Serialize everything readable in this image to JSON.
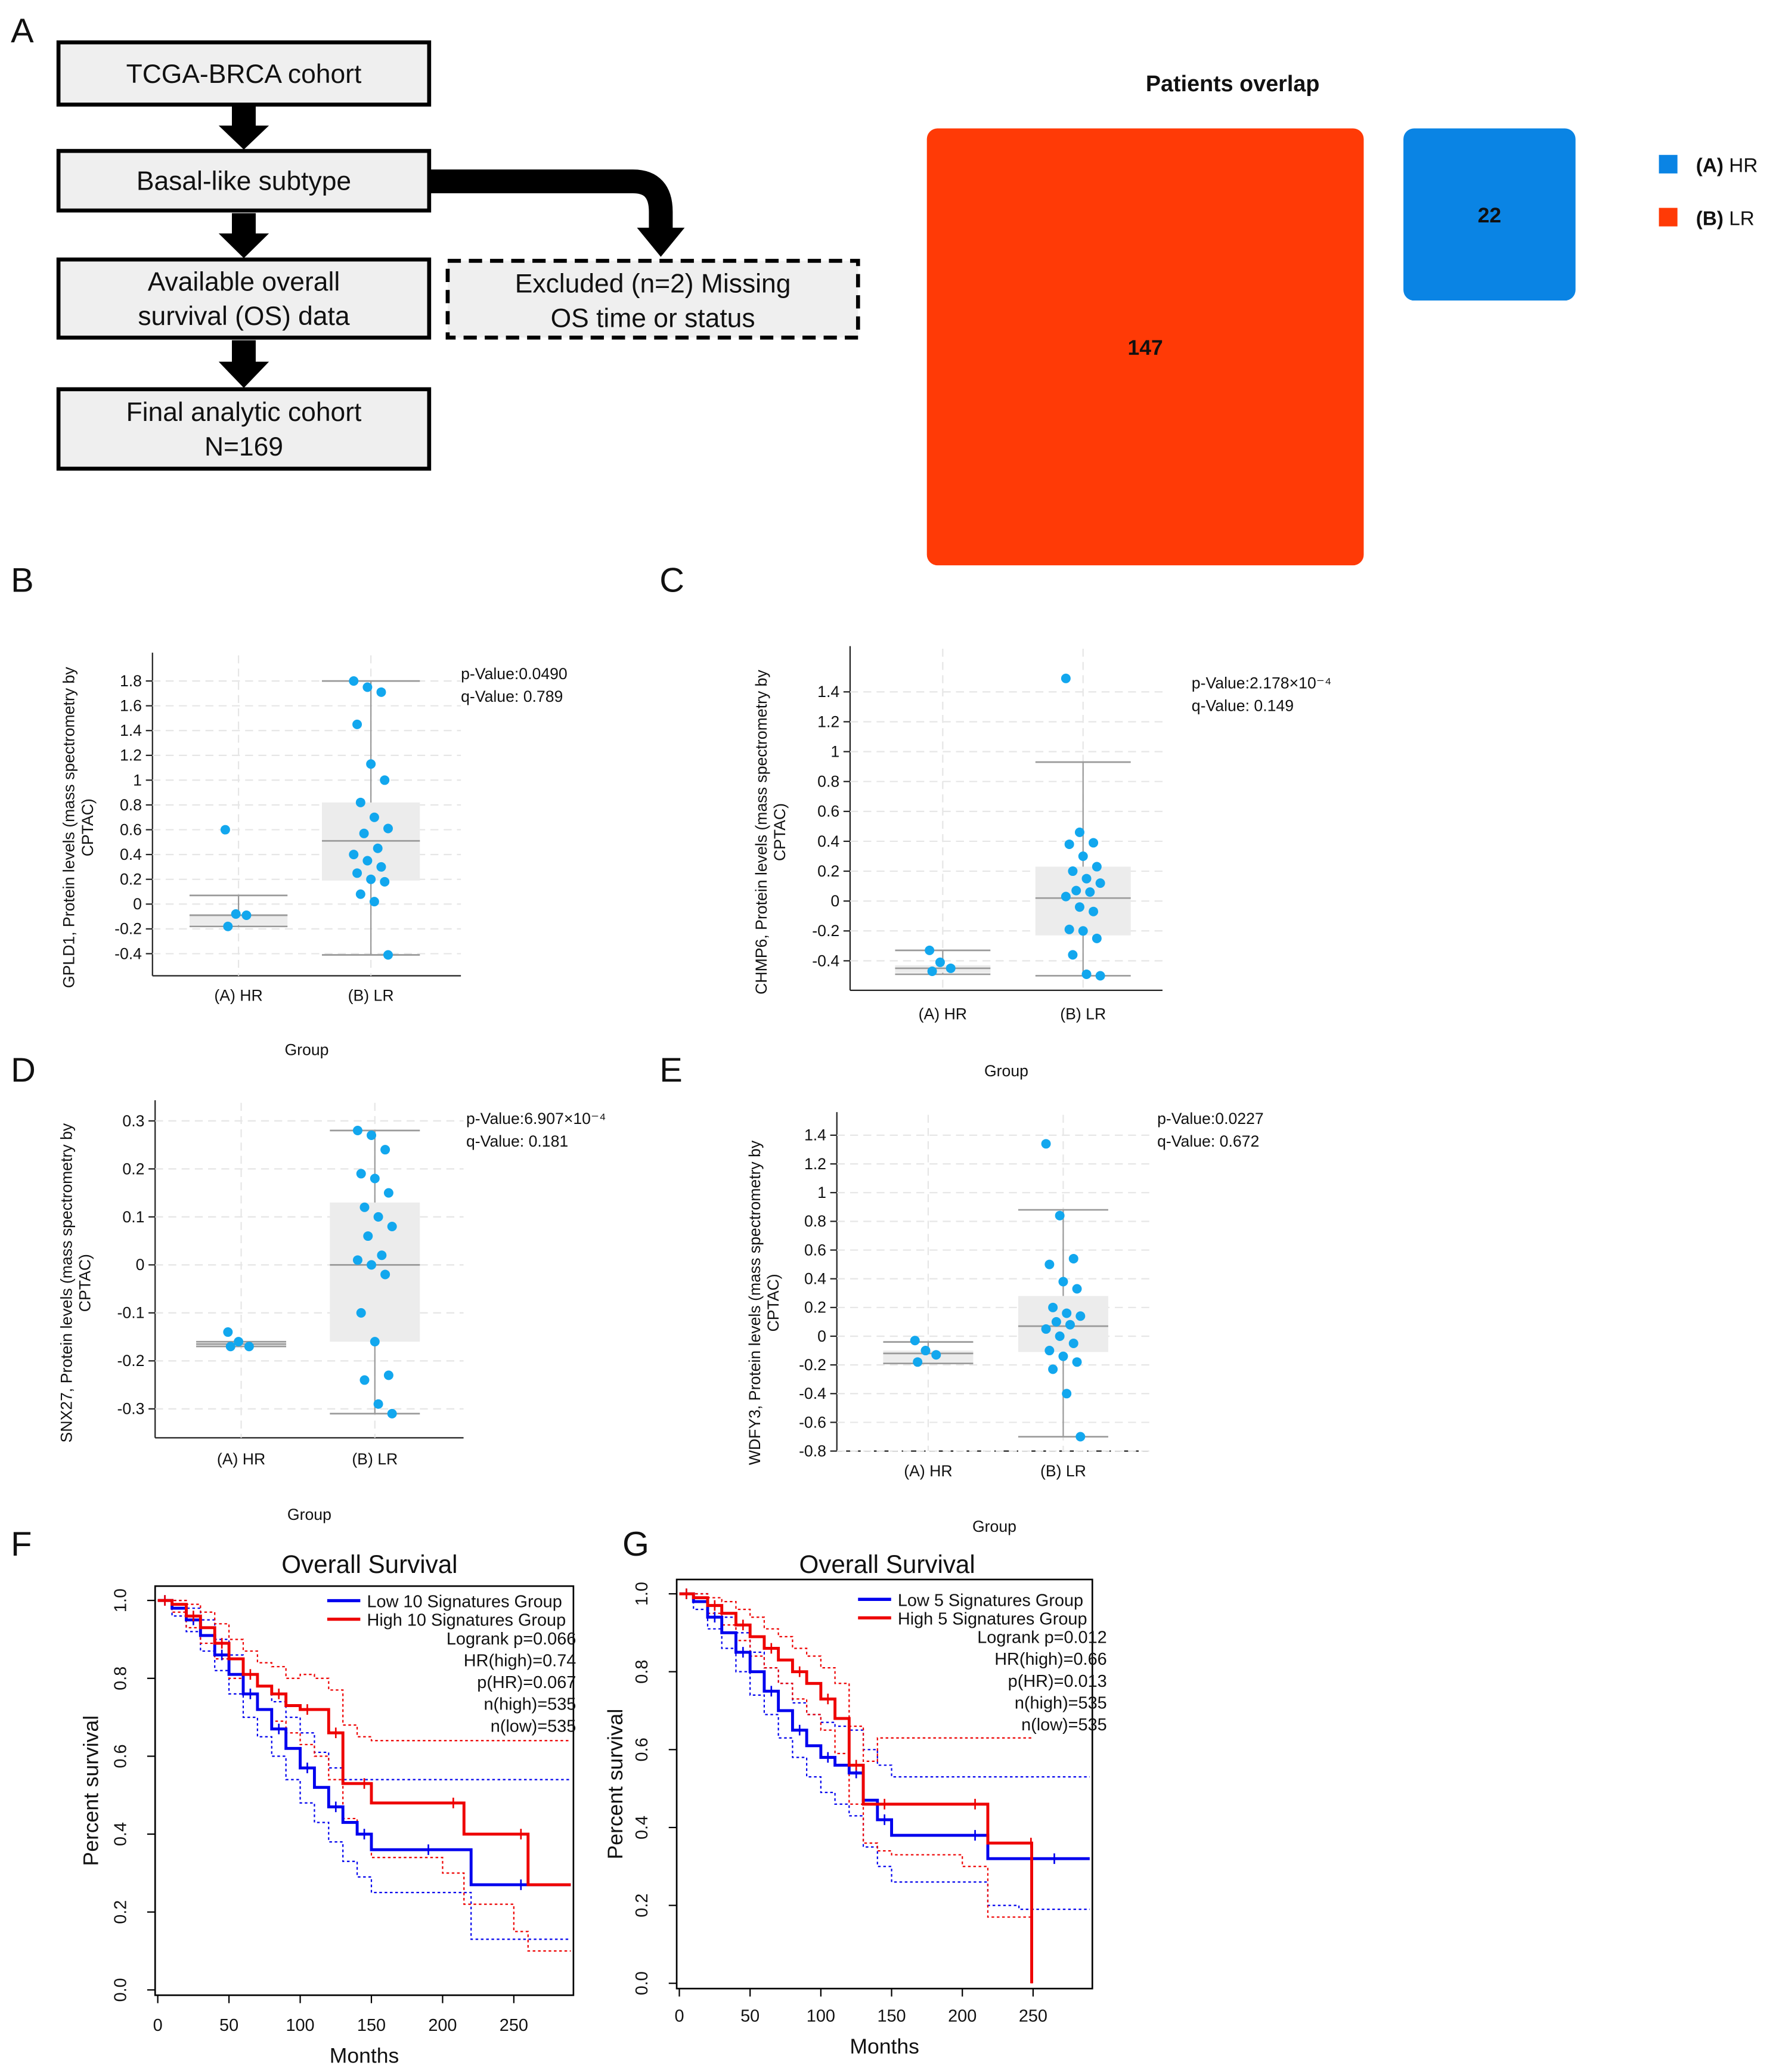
{
  "figure": {
    "panel_letters": [
      "A",
      "B",
      "C",
      "D",
      "E",
      "F",
      "G"
    ]
  },
  "flowchart": {
    "boxes": [
      {
        "lines": [
          "TCGA-BRCA cohort"
        ]
      },
      {
        "lines": [
          "Basal-like subtype"
        ]
      },
      {
        "lines": [
          "Available overall",
          "survival (OS) data"
        ]
      },
      {
        "lines": [
          "Final analytic cohort",
          "N=169"
        ]
      }
    ],
    "excluded": {
      "lines": [
        "Excluded (n=2) Missing",
        "OS time or status"
      ]
    }
  },
  "chart_data": [
    {
      "id": "overlap",
      "type": "treemap",
      "title": "Patients overlap",
      "groups": [
        {
          "name_prefix": "(A)",
          "name_suffix": " HR",
          "value": 22,
          "color": "#0a84e4"
        },
        {
          "name_prefix": "(B)",
          "name_suffix": " LR",
          "value": 147,
          "color": "#ff3a06"
        }
      ]
    },
    {
      "id": "B",
      "type": "box",
      "gene": "GPLD1",
      "ylabel": [
        "GPLD1, Protein levels (mass spectrometry by",
        "CPTAC)"
      ],
      "xlabel": "Group",
      "categories": [
        "(A) HR",
        "(B) LR"
      ],
      "yticks": [
        1.8,
        1.6,
        1.4,
        1.2,
        1,
        0.8,
        0.6,
        0.4,
        0.2,
        0,
        -0.2,
        -0.4
      ],
      "ylim": [
        -0.45,
        1.9
      ],
      "stats": [
        "p-Value:0.0490",
        "q-Value: 0.789"
      ],
      "boxes": [
        {
          "min": -0.18,
          "q1": -0.17,
          "median": -0.09,
          "q3": -0.08,
          "max": 0.07
        },
        {
          "min": -0.41,
          "q1": 0.19,
          "median": 0.51,
          "q3": 0.82,
          "max": 1.8
        }
      ],
      "points": [
        [
          0.6,
          -0.08,
          -0.09,
          -0.18
        ],
        [
          1.8,
          1.75,
          1.71,
          1.45,
          1.13,
          1.0,
          0.82,
          0.7,
          0.61,
          0.57,
          0.45,
          0.4,
          0.35,
          0.3,
          0.25,
          0.2,
          0.18,
          0.08,
          0.02,
          -0.41
        ]
      ]
    },
    {
      "id": "C",
      "type": "box",
      "gene": "CHMP6",
      "ylabel": [
        "CHMP6, Protein levels (mass spectrometry by",
        "CPTAC)"
      ],
      "xlabel": "Group",
      "categories": [
        "(A) HR",
        "(B) LR"
      ],
      "yticks": [
        1.4,
        1.2,
        1,
        0.8,
        0.6,
        0.4,
        0.2,
        0,
        -0.2,
        -0.4
      ],
      "ylim": [
        -0.5,
        1.6
      ],
      "stats": [
        "p-Value:2.178×10⁻⁴",
        "q-Value: 0.149"
      ],
      "boxes": [
        {
          "min": -0.49,
          "q1": -0.48,
          "median": -0.45,
          "q3": -0.43,
          "max": -0.33
        },
        {
          "min": -0.5,
          "q1": -0.23,
          "median": 0.02,
          "q3": 0.23,
          "max": 0.93
        }
      ],
      "points": [
        [
          -0.33,
          -0.41,
          -0.45,
          -0.47
        ],
        [
          1.49,
          0.46,
          0.39,
          0.38,
          0.3,
          0.23,
          0.2,
          0.15,
          0.12,
          0.07,
          0.06,
          0.03,
          -0.04,
          -0.07,
          -0.19,
          -0.2,
          -0.25,
          -0.36,
          -0.49,
          -0.5
        ]
      ]
    },
    {
      "id": "D",
      "type": "box",
      "gene": "SNX27",
      "ylabel": [
        "SNX27, Protein levels (mass spectrometry by",
        "CPTAC)"
      ],
      "xlabel": "Group",
      "categories": [
        "(A) HR",
        "(B) LR"
      ],
      "yticks": [
        0.3,
        0.2,
        0.1,
        0,
        -0.1,
        -0.2,
        -0.3
      ],
      "ylim": [
        -0.33,
        0.31
      ],
      "stats": [
        "p-Value:6.907×10⁻⁴",
        "q-Value: 0.181"
      ],
      "boxes": [
        {
          "min": -0.17,
          "q1": -0.17,
          "median": -0.165,
          "q3": -0.16,
          "max": -0.16
        },
        {
          "min": -0.31,
          "q1": -0.16,
          "median": 0.0,
          "q3": 0.13,
          "max": 0.28
        }
      ],
      "points": [
        [
          -0.14,
          -0.16,
          -0.17,
          -0.17
        ],
        [
          0.28,
          0.27,
          0.24,
          0.19,
          0.18,
          0.15,
          0.12,
          0.1,
          0.08,
          0.06,
          0.02,
          0.01,
          0.0,
          -0.02,
          -0.1,
          -0.16,
          -0.23,
          -0.24,
          -0.29,
          -0.31
        ]
      ]
    },
    {
      "id": "E",
      "type": "box",
      "gene": "WDFY3",
      "ylabel": [
        "WDFY3, Protein levels (mass spectrometry by",
        "CPTAC)"
      ],
      "xlabel": "Group",
      "categories": [
        "(A) HR",
        "(B) LR"
      ],
      "yticks": [
        1.4,
        1.2,
        1,
        0.8,
        0.6,
        0.4,
        0.2,
        0,
        -0.2,
        -0.4,
        -0.6,
        -0.8
      ],
      "ylim": [
        -0.8,
        1.45
      ],
      "stats": [
        "p-Value:0.0227",
        "q-Value: 0.672"
      ],
      "boxes": [
        {
          "min": -0.19,
          "q1": -0.19,
          "median": -0.12,
          "q3": -0.1,
          "max": -0.04
        },
        {
          "min": -0.7,
          "q1": -0.11,
          "median": 0.07,
          "q3": 0.28,
          "max": 0.88
        }
      ],
      "points": [
        [
          -0.03,
          -0.1,
          -0.13,
          -0.18
        ],
        [
          1.34,
          0.84,
          0.54,
          0.5,
          0.38,
          0.33,
          0.2,
          0.16,
          0.14,
          0.1,
          0.08,
          0.05,
          0.0,
          -0.05,
          -0.1,
          -0.14,
          -0.18,
          -0.23,
          -0.4,
          -0.7
        ]
      ]
    },
    {
      "id": "F",
      "type": "line",
      "title": "Overall Survival",
      "xlabel": "Months",
      "ylabel": "Percent survival",
      "xticks": [
        0,
        50,
        100,
        150,
        200,
        250
      ],
      "yticks": [
        0.0,
        0.2,
        0.4,
        0.6,
        0.8,
        1.0
      ],
      "xlim": [
        0,
        290
      ],
      "ylim": [
        0,
        1.03
      ],
      "legend": [
        "Low 10 Signatures Group",
        "High 10 Signatures Group"
      ],
      "stats": [
        "Logrank p=0.066",
        "HR(high)=0.74",
        "p(HR)=0.067",
        "n(high)=535",
        "n(low)=535"
      ],
      "series": [
        {
          "name": "Low 10 Signatures Group",
          "color": "#0000ee",
          "x": [
            0,
            10,
            20,
            30,
            40,
            50,
            60,
            70,
            80,
            90,
            100,
            110,
            120,
            130,
            140,
            150,
            180,
            200,
            220,
            290
          ],
          "y": [
            1.0,
            0.98,
            0.95,
            0.91,
            0.86,
            0.81,
            0.76,
            0.72,
            0.67,
            0.62,
            0.57,
            0.52,
            0.47,
            0.43,
            0.4,
            0.36,
            0.36,
            0.36,
            0.27,
            0.27
          ],
          "lower": [
            1.0,
            0.96,
            0.92,
            0.87,
            0.82,
            0.76,
            0.7,
            0.65,
            0.6,
            0.54,
            0.48,
            0.43,
            0.38,
            0.33,
            0.29,
            0.25,
            0.25,
            0.25,
            0.13,
            0.13
          ],
          "upper": [
            1.0,
            1.0,
            0.98,
            0.95,
            0.9,
            0.86,
            0.81,
            0.78,
            0.74,
            0.7,
            0.66,
            0.61,
            0.57,
            0.54,
            0.54,
            0.54,
            0.54,
            0.54,
            0.54,
            0.54
          ]
        },
        {
          "name": "High 10 Signatures Group",
          "color": "#ee0000",
          "x": [
            0,
            10,
            20,
            30,
            40,
            50,
            60,
            70,
            80,
            90,
            100,
            110,
            120,
            130,
            140,
            150,
            200,
            215,
            250,
            260,
            290
          ],
          "y": [
            1.0,
            0.99,
            0.96,
            0.93,
            0.89,
            0.85,
            0.81,
            0.78,
            0.76,
            0.73,
            0.72,
            0.72,
            0.66,
            0.53,
            0.53,
            0.48,
            0.48,
            0.4,
            0.4,
            0.27,
            0.27
          ],
          "lower": [
            1.0,
            0.97,
            0.93,
            0.89,
            0.85,
            0.8,
            0.76,
            0.72,
            0.69,
            0.66,
            0.63,
            0.6,
            0.54,
            0.44,
            0.4,
            0.34,
            0.3,
            0.22,
            0.15,
            0.1,
            0.1
          ],
          "upper": [
            1.0,
            1.0,
            0.99,
            0.97,
            0.94,
            0.9,
            0.87,
            0.84,
            0.83,
            0.8,
            0.81,
            0.8,
            0.77,
            0.68,
            0.65,
            0.64,
            0.64,
            0.64,
            0.64,
            0.64,
            0.64
          ]
        }
      ]
    },
    {
      "id": "G",
      "type": "line",
      "title": "Overall Survival",
      "xlabel": "Months",
      "ylabel": "Percent survival",
      "xticks": [
        0,
        50,
        100,
        150,
        200,
        250
      ],
      "yticks": [
        0.0,
        0.2,
        0.4,
        0.6,
        0.8,
        1.0
      ],
      "xlim": [
        0,
        290
      ],
      "ylim": [
        0,
        1.03
      ],
      "legend": [
        "Low 5 Signatures Group",
        "High 5 Signatures Group"
      ],
      "stats": [
        "Logrank p=0.012",
        "HR(high)=0.66",
        "p(HR)=0.013",
        "n(high)=535",
        "n(low)=535"
      ],
      "series": [
        {
          "name": "Low 5 Signatures Group",
          "color": "#0000ee",
          "x": [
            0,
            10,
            20,
            30,
            40,
            50,
            60,
            70,
            80,
            90,
            100,
            110,
            120,
            130,
            140,
            150,
            200,
            218,
            240,
            290
          ],
          "y": [
            1.0,
            0.98,
            0.94,
            0.9,
            0.85,
            0.8,
            0.75,
            0.7,
            0.65,
            0.61,
            0.58,
            0.56,
            0.54,
            0.47,
            0.42,
            0.38,
            0.38,
            0.32,
            0.32,
            0.32
          ],
          "lower": [
            1.0,
            0.96,
            0.91,
            0.86,
            0.8,
            0.74,
            0.69,
            0.63,
            0.58,
            0.53,
            0.49,
            0.46,
            0.43,
            0.35,
            0.3,
            0.26,
            0.26,
            0.2,
            0.19,
            0.19
          ],
          "upper": [
            1.0,
            1.0,
            0.97,
            0.94,
            0.9,
            0.85,
            0.81,
            0.77,
            0.72,
            0.69,
            0.67,
            0.66,
            0.65,
            0.6,
            0.56,
            0.53,
            0.53,
            0.53,
            0.53,
            0.53
          ]
        },
        {
          "name": "High 5 Signatures Group",
          "color": "#ee0000",
          "x": [
            0,
            10,
            20,
            30,
            40,
            50,
            60,
            70,
            80,
            90,
            100,
            110,
            120,
            130,
            140,
            150,
            200,
            218,
            248,
            249
          ],
          "y": [
            1.0,
            0.99,
            0.97,
            0.95,
            0.92,
            0.89,
            0.86,
            0.83,
            0.8,
            0.77,
            0.73,
            0.68,
            0.56,
            0.46,
            0.46,
            0.46,
            0.46,
            0.36,
            0.36,
            0.0
          ],
          "lower": [
            1.0,
            0.98,
            0.95,
            0.92,
            0.88,
            0.84,
            0.81,
            0.77,
            0.73,
            0.69,
            0.65,
            0.59,
            0.46,
            0.36,
            0.34,
            0.33,
            0.3,
            0.17,
            0.17,
            0.0
          ],
          "upper": [
            1.0,
            1.0,
            0.99,
            0.98,
            0.96,
            0.94,
            0.91,
            0.89,
            0.86,
            0.84,
            0.81,
            0.77,
            0.66,
            0.57,
            0.63,
            0.63,
            0.63,
            0.63,
            0.63,
            0.63
          ]
        }
      ]
    }
  ]
}
